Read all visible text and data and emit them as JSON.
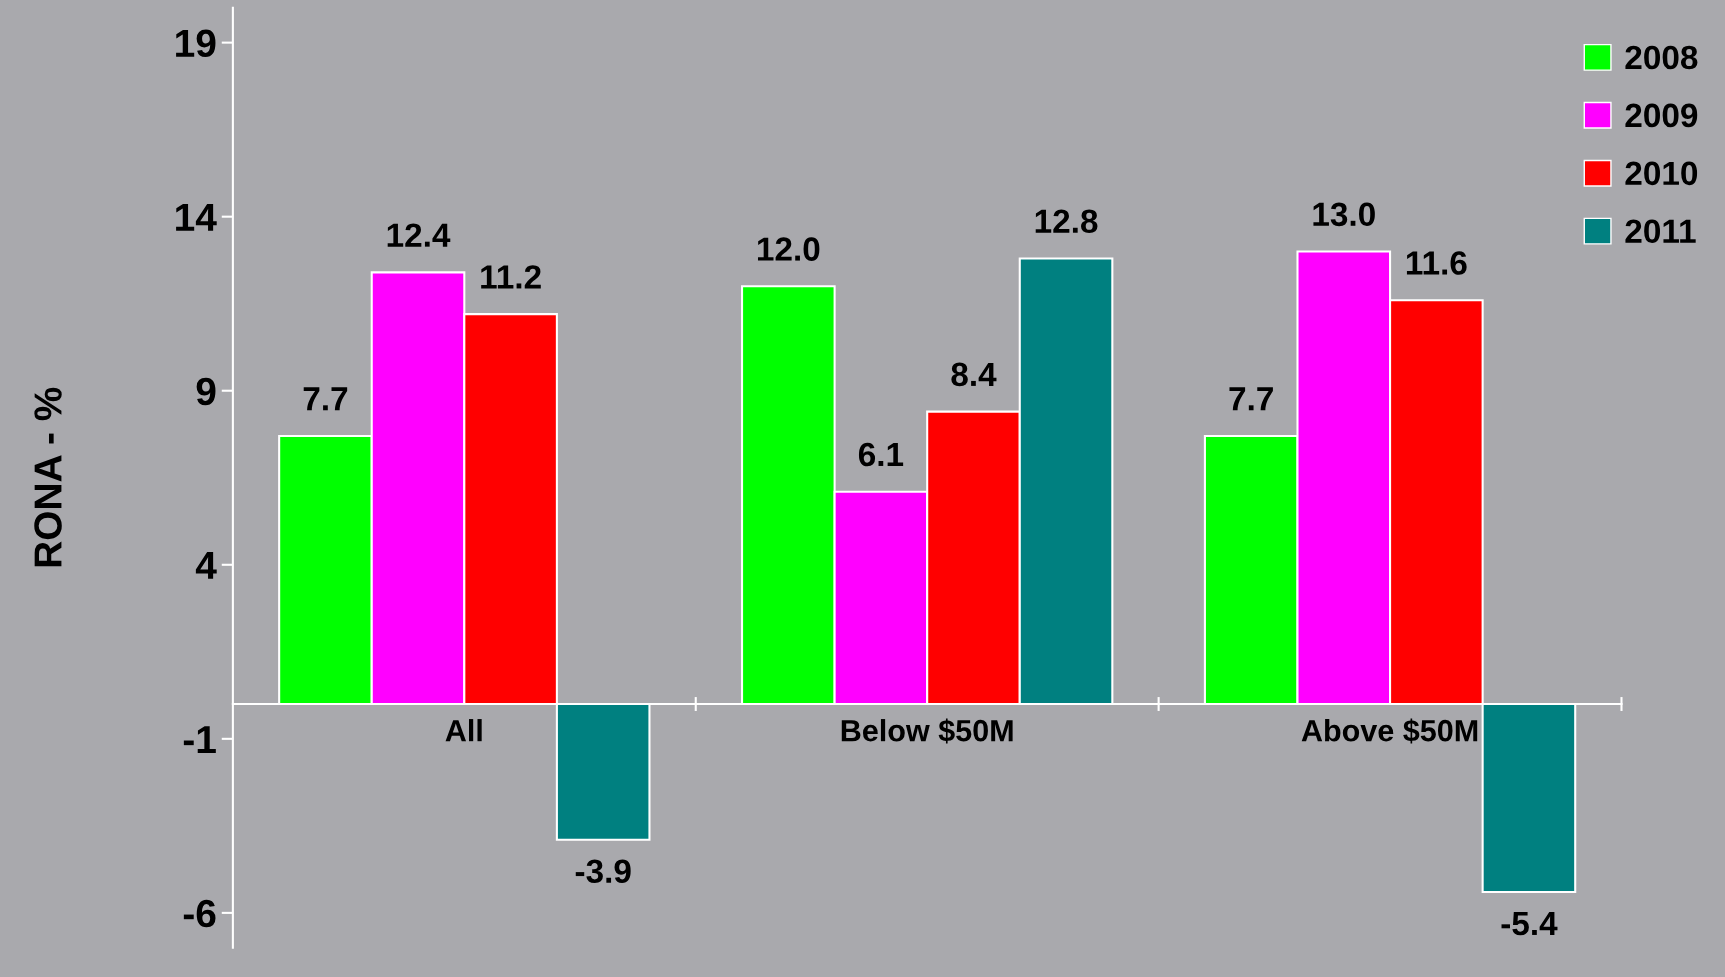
{
  "chart_data": {
    "type": "bar",
    "ylabel": "RONA - %",
    "categories": [
      "All",
      "Below $50M",
      "Above $50M"
    ],
    "series": [
      {
        "name": "2008",
        "color": "#00ff00",
        "values": [
          7.7,
          12.0,
          7.7
        ],
        "value_labels": [
          "7.7",
          "12.0",
          "7.7"
        ]
      },
      {
        "name": "2009",
        "color": "#ff00ff",
        "values": [
          12.4,
          6.1,
          13.0
        ],
        "value_labels": [
          "12.4",
          "6.1",
          "13.0"
        ]
      },
      {
        "name": "2010",
        "color": "#ff0000",
        "values": [
          11.2,
          8.4,
          11.6
        ],
        "value_labels": [
          "11.2",
          "8.4",
          "11.6"
        ]
      },
      {
        "name": "2011",
        "color": "#008080",
        "values": [
          -3.9,
          12.8,
          -5.4
        ],
        "value_labels": [
          "-3.9",
          "12.8",
          "-5.4"
        ]
      }
    ],
    "ylim": [
      -7,
      20
    ],
    "yticks": [
      -6,
      -1,
      4,
      9,
      14,
      19
    ],
    "grid": false,
    "legend": "top right"
  }
}
